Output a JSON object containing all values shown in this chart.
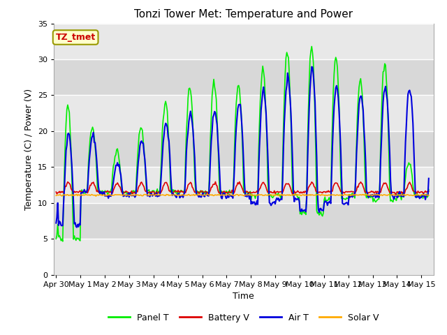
{
  "title": "Tonzi Tower Met: Temperature and Power",
  "xlabel": "Time",
  "ylabel": "Temperature (C) / Power (V)",
  "ylim": [
    0,
    35
  ],
  "yticks": [
    0,
    5,
    10,
    15,
    20,
    25,
    30,
    35
  ],
  "xlim_days": [
    -0.1,
    15.5
  ],
  "x_tick_labels": [
    "Apr 30",
    "May 1",
    "May 2",
    "May 3",
    "May 4",
    "May 5",
    "May 6",
    "May 7",
    "May 8",
    "May 9",
    "May 10",
    "May 11",
    "May 12",
    "May 13",
    "May 14",
    "May 15"
  ],
  "x_tick_positions": [
    0,
    1,
    2,
    3,
    4,
    5,
    6,
    7,
    8,
    9,
    10,
    11,
    12,
    13,
    14,
    15
  ],
  "annotation_text": "TZ_tmet",
  "annotation_color": "#cc0000",
  "annotation_bg": "#ffffcc",
  "annotation_edge": "#999900",
  "plot_bg_light": "#e8e8e8",
  "plot_bg_dark": "#d0d0d0",
  "grid_color": "#ffffff",
  "colors": {
    "panel_t": "#00ee00",
    "battery_v": "#dd0000",
    "air_t": "#0000dd",
    "solar_v": "#ffaa00"
  },
  "legend_labels": [
    "Panel T",
    "Battery V",
    "Air T",
    "Solar V"
  ],
  "figsize": [
    6.4,
    4.8
  ],
  "dpi": 100,
  "panel_peaks": [
    23.5,
    20.5,
    17.2,
    20.5,
    24.0,
    26.0,
    27.0,
    26.5,
    28.8,
    31.0,
    32.0,
    30.5,
    27.0,
    29.5,
    15.5
  ],
  "panel_nights": [
    5.0,
    11.5,
    11.5,
    11.5,
    11.5,
    11.5,
    11.5,
    11.5,
    11.0,
    11.0,
    8.5,
    10.5,
    11.0,
    10.5,
    11.0
  ],
  "air_peaks": [
    19.5,
    19.5,
    15.5,
    18.5,
    21.0,
    22.5,
    23.0,
    24.0,
    26.0,
    27.5,
    29.0,
    26.5,
    25.0,
    26.0,
    26.0
  ],
  "air_nights": [
    7.0,
    11.5,
    11.0,
    11.0,
    11.0,
    11.0,
    11.0,
    11.0,
    10.0,
    10.5,
    9.0,
    10.0,
    11.0,
    11.0,
    11.0
  ],
  "batt_base": 11.5,
  "batt_peak_add": 1.3,
  "solar_base": 11.1
}
